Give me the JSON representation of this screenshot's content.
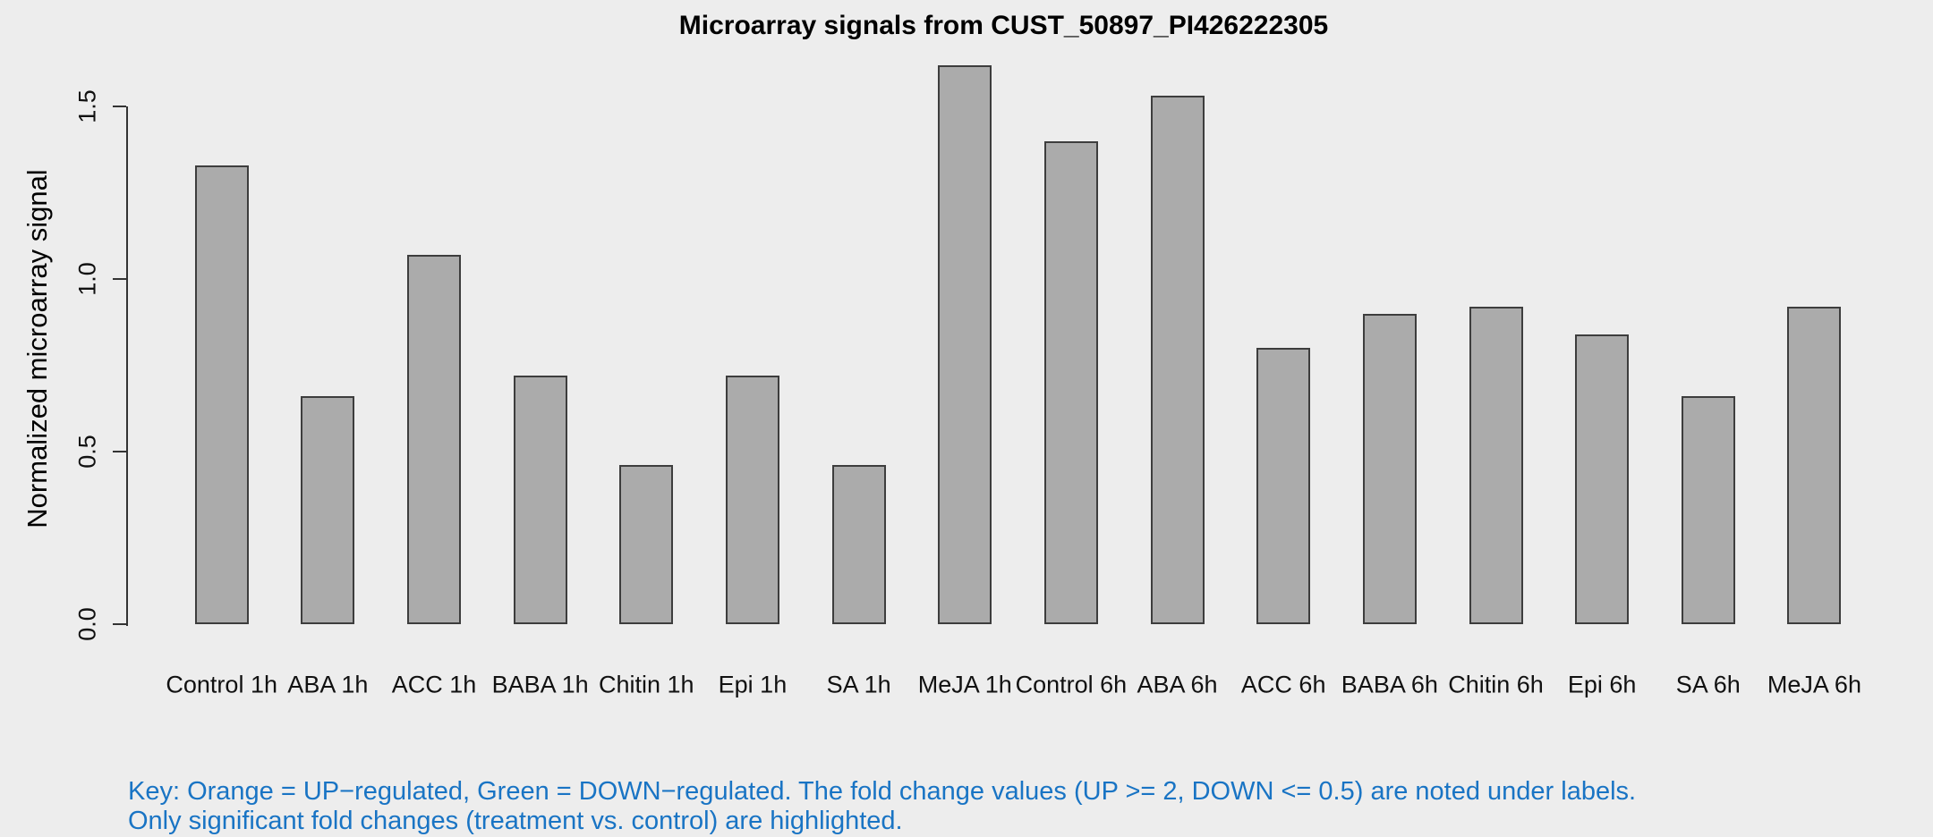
{
  "title": "Microarray signals from CUST_50897_PI426222305",
  "y_axis": {
    "label": "Normalized microarray signal",
    "tick_labels": [
      "0.0",
      "0.5",
      "1.0",
      "1.5"
    ]
  },
  "key": {
    "line1": "Key: Orange = UP−regulated, Green = DOWN−regulated. The fold change values (UP >= 2, DOWN <= 0.5) are noted under labels.",
    "line2": "Only significant fold changes (treatment vs. control) are highlighted.",
    "text_color": "#1974C4"
  },
  "colors": {
    "background": "#EDEDED",
    "bar_fill": "#ABABAB",
    "bar_border": "#3D3D3D",
    "axis": "#333333",
    "title_text": "#000000"
  },
  "chart_data": {
    "type": "bar",
    "title": "Microarray signals from CUST_50897_PI426222305",
    "xlabel": "",
    "ylabel": "Normalized microarray signal",
    "categories": [
      "Control 1h",
      "ABA 1h",
      "ACC 1h",
      "BABA 1h",
      "Chitin 1h",
      "Epi 1h",
      "SA 1h",
      "MeJA 1h",
      "Control 6h",
      "ABA 6h",
      "ACC 6h",
      "BABA 6h",
      "Chitin 6h",
      "Epi 6h",
      "SA 6h",
      "MeJA 6h"
    ],
    "values": [
      1.33,
      0.66,
      1.07,
      0.72,
      0.46,
      0.72,
      0.46,
      1.62,
      1.4,
      1.53,
      0.8,
      0.9,
      0.92,
      0.84,
      0.66,
      0.92
    ],
    "yticks": [
      0.0,
      0.5,
      1.0,
      1.5
    ],
    "ytick_labels": [
      "0.0",
      "0.5",
      "1.0",
      "1.5"
    ],
    "ylim": [
      0,
      1.68
    ],
    "grid": false,
    "legend_position": "none",
    "bar_color": "#ABABAB",
    "annotations": []
  }
}
